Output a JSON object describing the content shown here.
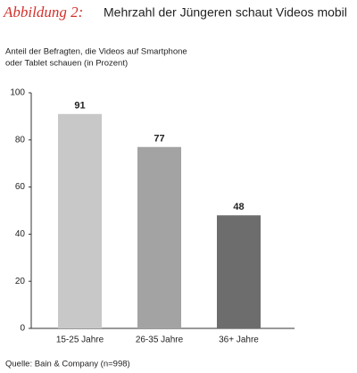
{
  "chart_data": {
    "type": "bar",
    "title_label": "Abbildung 2:",
    "title": "Mehrzahl der Jüngeren schaut Videos mobil",
    "subtitle": [
      "Anteil der Befragten, die Videos auf Smartphone",
      "oder Tablet schauen (in Prozent)"
    ],
    "categories": [
      "15-25 Jahre",
      "26-35 Jahre",
      "36+ Jahre"
    ],
    "values": [
      91,
      77,
      48
    ],
    "colors": [
      "#c8c8c8",
      "#a3a3a3",
      "#6d6d6d"
    ],
    "ylim": [
      0,
      100
    ],
    "yticks": [
      0,
      20,
      40,
      60,
      80,
      100
    ],
    "grid": false,
    "source": "Quelle: Bain & Company (n=998)"
  }
}
